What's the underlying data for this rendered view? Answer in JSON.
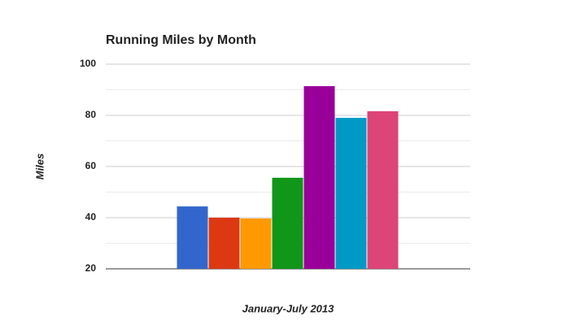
{
  "chart_data": {
    "type": "bar",
    "title": "Running Miles by Month",
    "x_label": "January-July 2013",
    "y_label": "Miles",
    "categories": [
      null
    ],
    "series": [
      {
        "color": "#3366cc",
        "values": [
          44.4
        ]
      },
      {
        "color": "#dc3912",
        "values": [
          40
        ]
      },
      {
        "color": "#ff9900",
        "values": [
          39.7
        ]
      },
      {
        "color": "#109618",
        "values": [
          55.6
        ]
      },
      {
        "color": "#990099",
        "values": [
          91.4
        ]
      },
      {
        "color": "#0099c6",
        "values": [
          79
        ]
      },
      {
        "color": "#dd4477",
        "values": [
          81.6
        ]
      }
    ],
    "ylim": [
      20,
      100
    ],
    "yticks": [
      20,
      40,
      60,
      80,
      100
    ],
    "minor_gridlines": [
      30,
      50,
      70,
      90
    ],
    "grid": true
  }
}
